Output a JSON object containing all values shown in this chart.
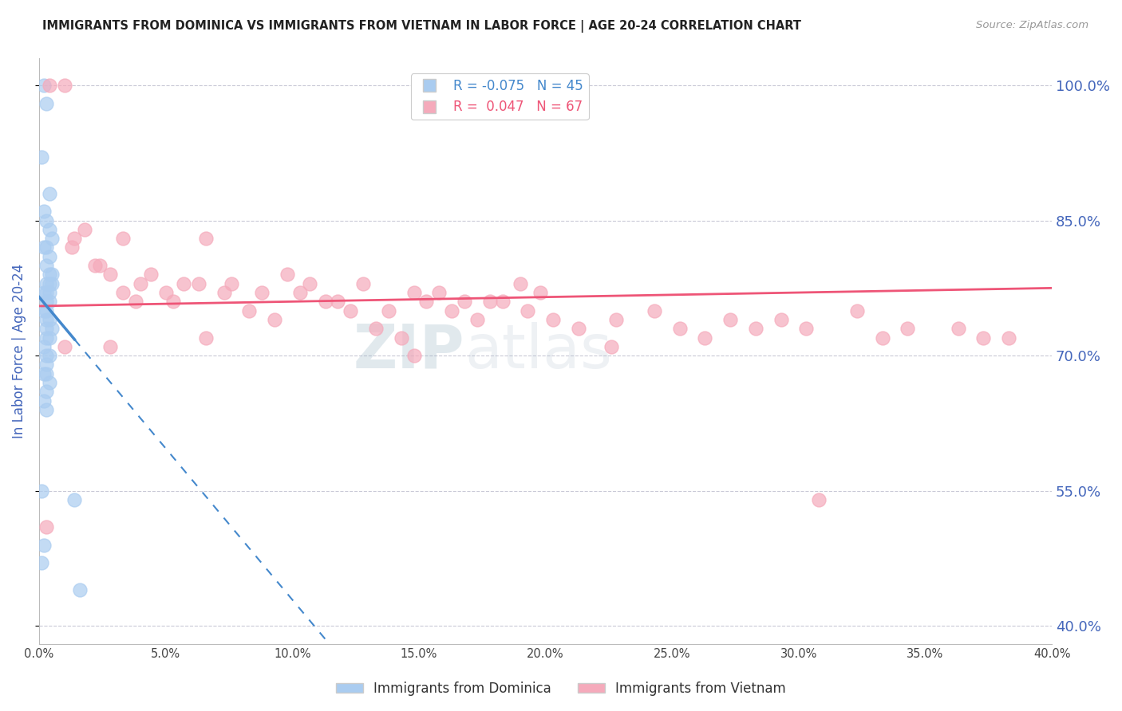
{
  "title": "IMMIGRANTS FROM DOMINICA VS IMMIGRANTS FROM VIETNAM IN LABOR FORCE | AGE 20-24 CORRELATION CHART",
  "source": "Source: ZipAtlas.com",
  "xlabel": "",
  "ylabel": "In Labor Force | Age 20-24",
  "xlim": [
    0.0,
    0.4
  ],
  "ylim": [
    0.38,
    1.03
  ],
  "yticks": [
    0.4,
    0.55,
    0.7,
    0.85,
    1.0
  ],
  "xticks": [
    0.0,
    0.05,
    0.1,
    0.15,
    0.2,
    0.25,
    0.3,
    0.35,
    0.4
  ],
  "dominica_R": -0.075,
  "dominica_N": 45,
  "vietnam_R": 0.047,
  "vietnam_N": 67,
  "dominica_color": "#aaccf0",
  "vietnam_color": "#f5aabb",
  "dominica_line_color": "#4488cc",
  "vietnam_line_color": "#ee5577",
  "background_color": "#ffffff",
  "grid_color": "#bbbbcc",
  "axis_label_color": "#4466bb",
  "title_color": "#222222",
  "watermark": "ZIPatlas",
  "dominica_scatter_x": [
    0.002,
    0.003,
    0.001,
    0.004,
    0.002,
    0.003,
    0.004,
    0.005,
    0.002,
    0.003,
    0.004,
    0.003,
    0.004,
    0.005,
    0.004,
    0.003,
    0.005,
    0.003,
    0.004,
    0.002,
    0.003,
    0.004,
    0.003,
    0.002,
    0.003,
    0.004,
    0.003,
    0.005,
    0.004,
    0.003,
    0.002,
    0.003,
    0.004,
    0.003,
    0.002,
    0.003,
    0.004,
    0.003,
    0.002,
    0.003,
    0.001,
    0.014,
    0.002,
    0.001,
    0.016
  ],
  "dominica_scatter_y": [
    1.0,
    0.98,
    0.92,
    0.88,
    0.86,
    0.85,
    0.84,
    0.83,
    0.82,
    0.82,
    0.81,
    0.8,
    0.79,
    0.79,
    0.78,
    0.78,
    0.78,
    0.77,
    0.77,
    0.77,
    0.76,
    0.76,
    0.75,
    0.75,
    0.74,
    0.74,
    0.73,
    0.73,
    0.72,
    0.72,
    0.71,
    0.7,
    0.7,
    0.69,
    0.68,
    0.68,
    0.67,
    0.66,
    0.65,
    0.64,
    0.55,
    0.54,
    0.49,
    0.47,
    0.44
  ],
  "vietnam_scatter_x": [
    0.004,
    0.01,
    0.018,
    0.013,
    0.022,
    0.028,
    0.033,
    0.04,
    0.014,
    0.05,
    0.057,
    0.066,
    0.076,
    0.088,
    0.098,
    0.107,
    0.118,
    0.128,
    0.138,
    0.148,
    0.158,
    0.168,
    0.178,
    0.19,
    0.198,
    0.024,
    0.033,
    0.044,
    0.053,
    0.063,
    0.073,
    0.083,
    0.093,
    0.103,
    0.113,
    0.123,
    0.133,
    0.143,
    0.153,
    0.163,
    0.173,
    0.183,
    0.193,
    0.203,
    0.213,
    0.038,
    0.228,
    0.243,
    0.253,
    0.263,
    0.273,
    0.283,
    0.293,
    0.303,
    0.066,
    0.323,
    0.333,
    0.343,
    0.028,
    0.363,
    0.373,
    0.383,
    0.01,
    0.148,
    0.226,
    0.308,
    0.003
  ],
  "vietnam_scatter_y": [
    1.0,
    1.0,
    0.84,
    0.82,
    0.8,
    0.79,
    0.83,
    0.78,
    0.83,
    0.77,
    0.78,
    0.83,
    0.78,
    0.77,
    0.79,
    0.78,
    0.76,
    0.78,
    0.75,
    0.77,
    0.77,
    0.76,
    0.76,
    0.78,
    0.77,
    0.8,
    0.77,
    0.79,
    0.76,
    0.78,
    0.77,
    0.75,
    0.74,
    0.77,
    0.76,
    0.75,
    0.73,
    0.72,
    0.76,
    0.75,
    0.74,
    0.76,
    0.75,
    0.74,
    0.73,
    0.76,
    0.74,
    0.75,
    0.73,
    0.72,
    0.74,
    0.73,
    0.74,
    0.73,
    0.72,
    0.75,
    0.72,
    0.73,
    0.71,
    0.73,
    0.72,
    0.72,
    0.71,
    0.7,
    0.71,
    0.54,
    0.51
  ],
  "dom_line_x0": 0.0,
  "dom_line_y0": 0.765,
  "dom_line_x1": 0.014,
  "dom_line_y1": 0.718,
  "dom_line_solid_end": 0.014,
  "dom_line_dashed_end": 0.4,
  "viet_line_x0": 0.0,
  "viet_line_y0": 0.755,
  "viet_line_x1": 0.4,
  "viet_line_y1": 0.775
}
